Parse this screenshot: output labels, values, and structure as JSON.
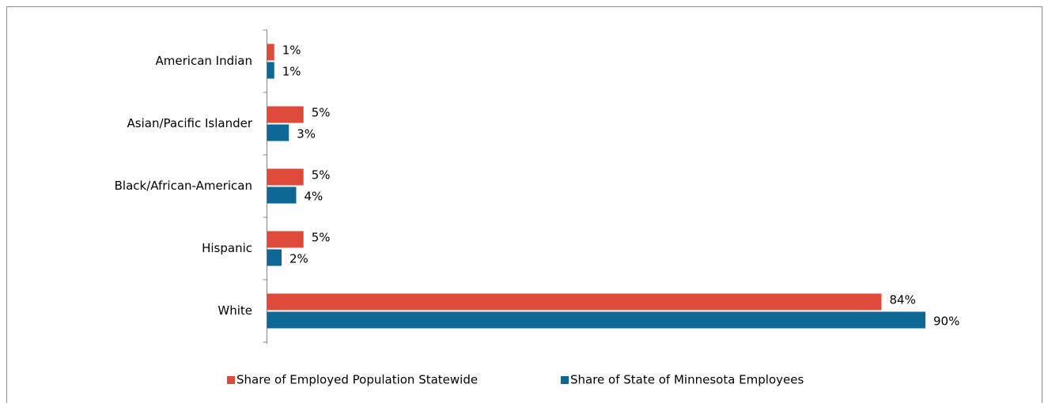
{
  "chart_data": {
    "type": "bar",
    "orientation": "horizontal",
    "categories": [
      "American Indian",
      "Asian/Pacific Islander",
      "Black/African-American",
      "Hispanic",
      "White"
    ],
    "series": [
      {
        "name": "Share of Employed Population Statewide",
        "color": "#df4b3a",
        "values": [
          1,
          5,
          5,
          5,
          84
        ],
        "value_labels": [
          "1%",
          "5%",
          "5%",
          "5%",
          "84%"
        ]
      },
      {
        "name": "Share of State of Minnesota Employees",
        "color": "#0e6896",
        "values": [
          1,
          3,
          4,
          2,
          90
        ],
        "value_labels": [
          "1%",
          "3%",
          "4%",
          "2%",
          "90%"
        ]
      }
    ],
    "legend": "bottom"
  }
}
